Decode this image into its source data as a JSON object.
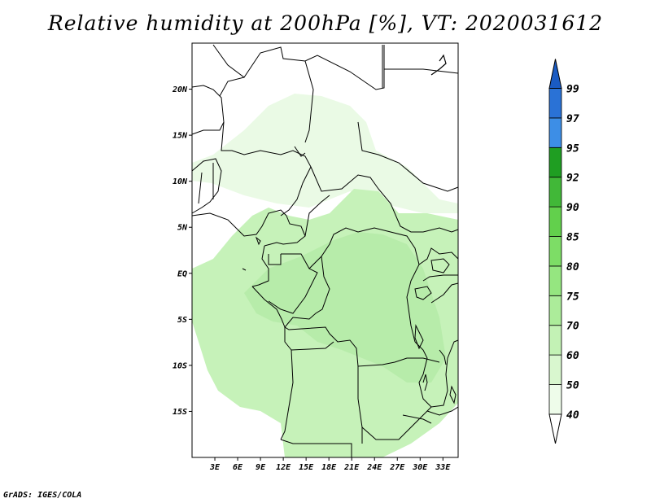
{
  "title": "Relative humidity at 200hPa [%], VT: 2020031612",
  "credit": "GrADS: IGES/COLA",
  "map": {
    "lon_range": [
      0,
      35
    ],
    "lat_range": [
      -20,
      25
    ],
    "lat_ticks": [
      {
        "value": 20,
        "label": "20N"
      },
      {
        "value": 15,
        "label": "15N"
      },
      {
        "value": 10,
        "label": "10N"
      },
      {
        "value": 5,
        "label": "5N"
      },
      {
        "value": 0,
        "label": "EQ"
      },
      {
        "value": -5,
        "label": "5S"
      },
      {
        "value": -10,
        "label": "10S"
      },
      {
        "value": -15,
        "label": "15S"
      }
    ],
    "lon_ticks": [
      {
        "value": 3,
        "label": "3E"
      },
      {
        "value": 6,
        "label": "6E"
      },
      {
        "value": 9,
        "label": "9E"
      },
      {
        "value": 12,
        "label": "12E"
      },
      {
        "value": 15,
        "label": "15E"
      },
      {
        "value": 18,
        "label": "18E"
      },
      {
        "value": 21,
        "label": "21E"
      },
      {
        "value": 24,
        "label": "24E"
      },
      {
        "value": 27,
        "label": "27E"
      },
      {
        "value": 30,
        "label": "30E"
      },
      {
        "value": 33,
        "label": "33E"
      }
    ]
  },
  "colorbar": {
    "levels": [
      "40",
      "50",
      "60",
      "70",
      "75",
      "80",
      "85",
      "90",
      "92",
      "95",
      "97",
      "99"
    ],
    "colors": [
      "#eefcea",
      "#d9f7cf",
      "#c3f2b5",
      "#acec9a",
      "#95e680",
      "#7ddd66",
      "#62d04c",
      "#41b838",
      "#1f9e22",
      "#3d8ee6",
      "#2a72d6",
      "#1a5bc3"
    ],
    "low_color": "#ffffff",
    "high_color": "#1a5bc3"
  },
  "humidity_colors": {
    "light": "#cdf6c2",
    "mid": "#bff0b2",
    "dark": "#aee89f"
  }
}
